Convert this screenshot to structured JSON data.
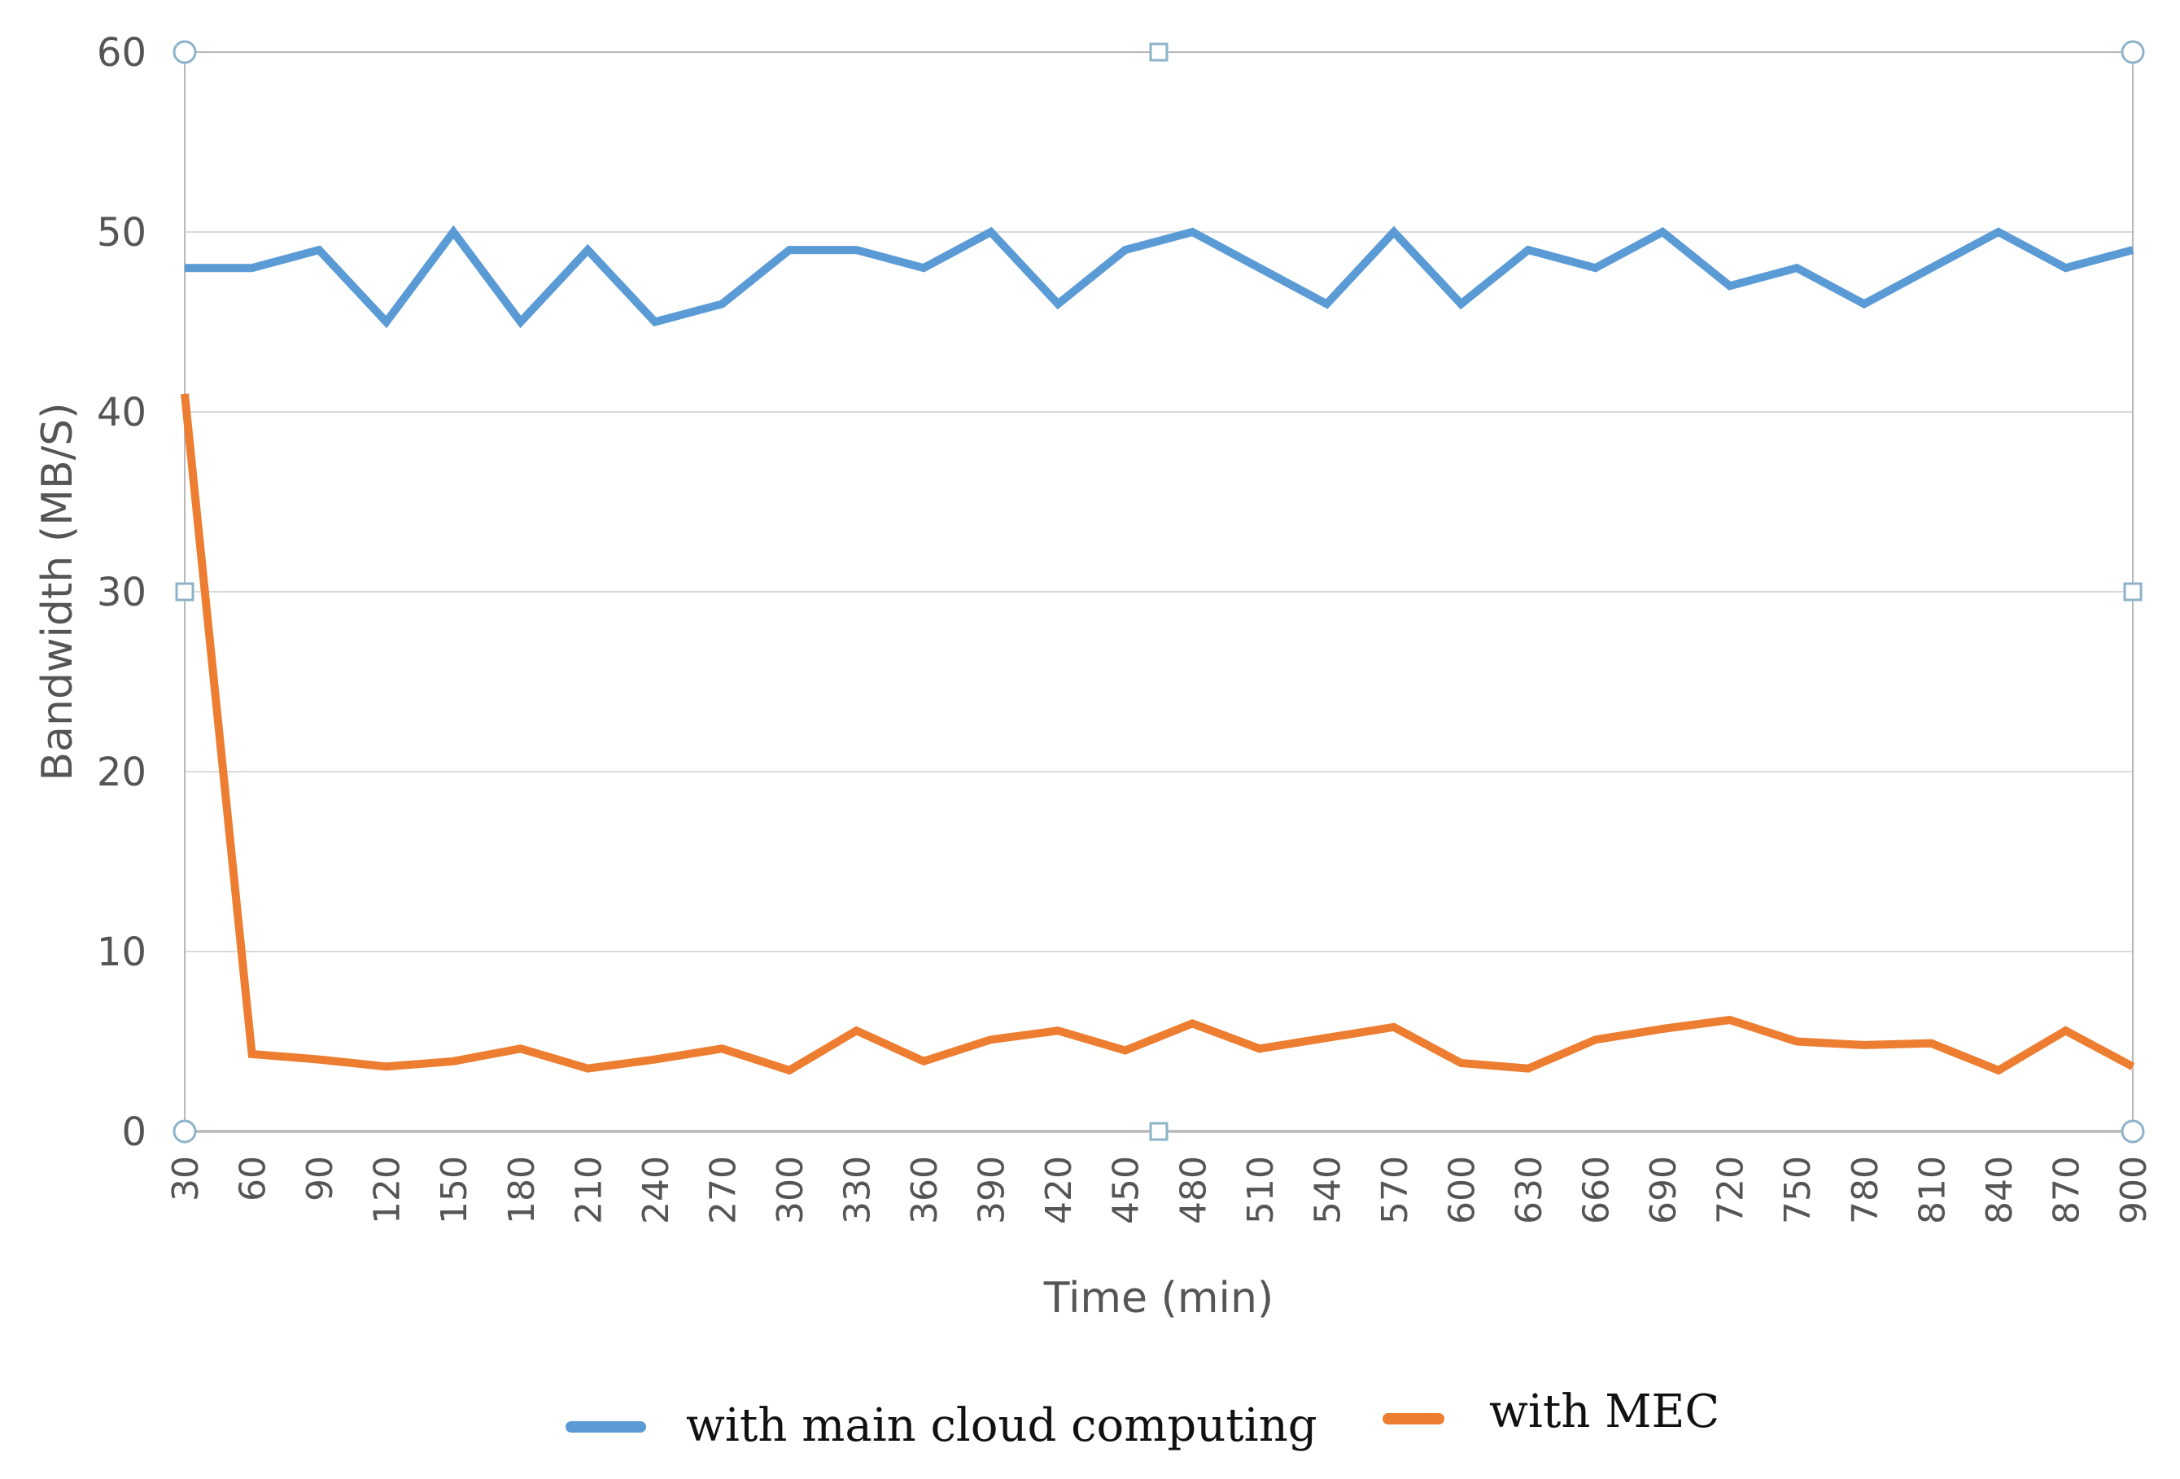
{
  "chart_data": {
    "type": "line",
    "title": "",
    "xlabel": "Time (min)",
    "ylabel": "Bandwidth (MB/S)",
    "ylim": [
      0,
      60
    ],
    "yticks": [
      0,
      10,
      20,
      30,
      40,
      50,
      60
    ],
    "grid": true,
    "legend_position": "bottom",
    "categories": [
      30,
      60,
      90,
      120,
      150,
      180,
      210,
      240,
      270,
      300,
      330,
      360,
      390,
      420,
      450,
      480,
      510,
      540,
      570,
      600,
      630,
      660,
      690,
      720,
      750,
      780,
      810,
      840,
      870,
      900
    ],
    "series": [
      {
        "name": "with main cloud computing",
        "color": "#5b9bd5",
        "values": [
          48,
          48,
          49,
          45,
          50,
          45,
          49,
          45,
          46,
          49,
          49,
          48,
          50,
          46,
          49,
          50,
          48,
          46,
          50,
          46,
          49,
          48,
          50,
          47,
          48,
          46,
          48,
          50,
          48,
          49
        ]
      },
      {
        "name": "with MEC",
        "color": "#ed7d31",
        "values": [
          41,
          4.3,
          4,
          3.6,
          3.9,
          4.6,
          3.5,
          4,
          4.6,
          3.4,
          5.6,
          3.9,
          5.1,
          5.6,
          4.5,
          6,
          4.6,
          5.2,
          5.8,
          3.8,
          3.5,
          5.1,
          5.7,
          6.2,
          5,
          4.8,
          4.9,
          3.4,
          5.6,
          3.6
        ]
      }
    ]
  }
}
